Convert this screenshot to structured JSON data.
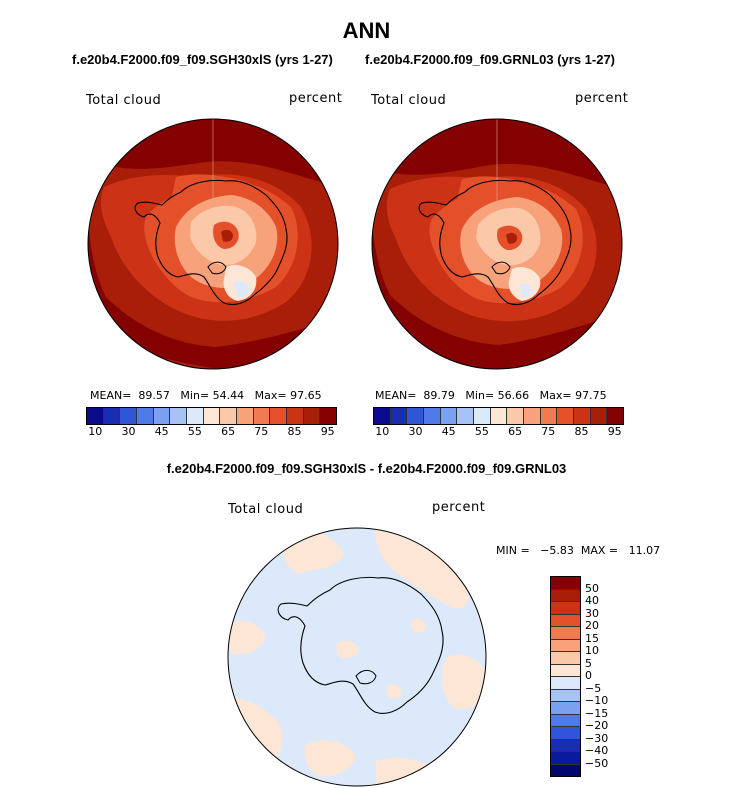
{
  "title": "ANN",
  "panels": [
    {
      "subtitle": "f.e20b4.F2000.f09_f09.SGH30xlS (yrs 1-27)",
      "variable": "Total cloud",
      "units": "percent",
      "mean_label": "MEAN=",
      "mean": "89.57",
      "min_label": "Min=",
      "min": "54.44",
      "max_label": "Max=",
      "max": "97.65"
    },
    {
      "subtitle": "f.e20b4.F2000.f09_f09.GRNL03 (yrs 1-27)",
      "variable": "Total cloud",
      "units": "percent",
      "mean_label": "MEAN=",
      "mean": "89.79",
      "min_label": "Min=",
      "min": "56.66",
      "max_label": "Max=",
      "max": "97.75"
    }
  ],
  "diff_panel": {
    "subtitle": "f.e20b4.F2000.f09_f09.SGH30xlS - f.e20b4.F2000.f09_f09.GRNL03",
    "variable": "Total cloud",
    "units": "percent",
    "minmax_text": "MIN =   −5.83  MAX =   11.07"
  },
  "abs_colorbar": {
    "colors": [
      "#0a0a8c",
      "#1a2cb4",
      "#2f55d8",
      "#4f7ae8",
      "#7aa0f0",
      "#a7c3f5",
      "#dce9fb",
      "#fde6d6",
      "#fbc8aa",
      "#f7a27a",
      "#f27a50",
      "#e4502a",
      "#cc3216",
      "#a81e08",
      "#850000"
    ],
    "tick_labels": [
      "10",
      "30",
      "45",
      "55",
      "65",
      "75",
      "85",
      "95"
    ]
  },
  "diff_colorbar": {
    "colors": [
      "#850000",
      "#a81e08",
      "#cc3216",
      "#e4502a",
      "#f27a50",
      "#f7a27a",
      "#fbc8aa",
      "#fde6d6",
      "#dce9fb",
      "#a7c3f5",
      "#7aa0f0",
      "#4f7ae8",
      "#2f55d8",
      "#1a2cb4",
      "#0a1a9c",
      "#05056e"
    ],
    "tick_labels": [
      "50",
      "40",
      "30",
      "20",
      "15",
      "10",
      "5",
      "0",
      "−5",
      "−10",
      "−15",
      "−20",
      "−30",
      "−40",
      "−50"
    ]
  }
}
